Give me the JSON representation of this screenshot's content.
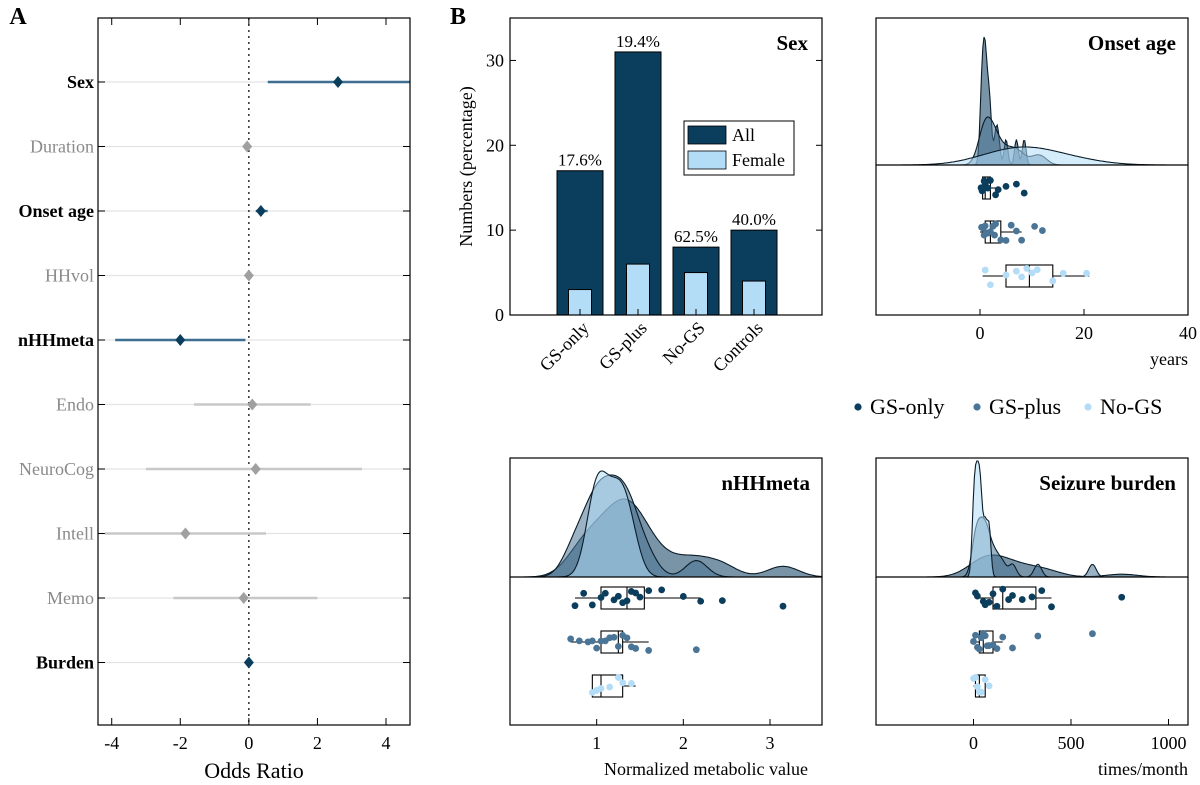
{
  "panel_labels": {
    "a": "A",
    "b": "B"
  },
  "colors": {
    "dark": "#0b3d5c",
    "mid": "#4a7596",
    "light": "#b3dcf7",
    "grey_marker": "#a0a0a0",
    "grey_line": "#c8c8c8",
    "grey_text": "#8a8a8a",
    "dark_line": "#3f6f90",
    "axis": "#000000"
  },
  "chart_data": [
    {
      "id": "forest",
      "type": "forest",
      "xlabel": "Odds Ratio",
      "xlim": [
        -4.4,
        4.7
      ],
      "xticks": [
        -4,
        -2,
        0,
        2,
        4
      ],
      "xtick_labels": [
        "-4",
        "-2",
        "0",
        "2",
        "4"
      ],
      "reference_line": 0,
      "rows": [
        {
          "label": "Sex",
          "estimate": 2.6,
          "ci": [
            0.55,
            4.7
          ],
          "significant": true
        },
        {
          "label": "Duration",
          "estimate": -0.05,
          "ci": [
            -0.05,
            -0.05
          ],
          "significant": false
        },
        {
          "label": "Onset age",
          "estimate": 0.35,
          "ci": [
            0.2,
            0.55
          ],
          "significant": true
        },
        {
          "label": "HHvol",
          "estimate": 0.0,
          "ci": [
            0.0,
            0.0
          ],
          "significant": false
        },
        {
          "label": "nHHmeta",
          "estimate": -2.0,
          "ci": [
            -3.9,
            -0.1
          ],
          "significant": true
        },
        {
          "label": "Endo",
          "estimate": 0.1,
          "ci": [
            -1.6,
            1.8
          ],
          "significant": false
        },
        {
          "label": "NeuroCog",
          "estimate": 0.2,
          "ci": [
            -3.0,
            3.3
          ],
          "significant": false
        },
        {
          "label": "Intell",
          "estimate": -1.85,
          "ci": [
            -4.2,
            0.5
          ],
          "significant": false
        },
        {
          "label": "Memo",
          "estimate": -0.15,
          "ci": [
            -2.2,
            2.0
          ],
          "significant": false
        },
        {
          "label": "Burden",
          "estimate": 0.0,
          "ci": [
            0.0,
            0.0
          ],
          "significant": true
        }
      ]
    },
    {
      "id": "sex",
      "type": "bar",
      "title": "Sex",
      "ylabel": "Numbers (percentage)",
      "categories": [
        "GS-only",
        "GS-plus",
        "No-GS",
        "Controls"
      ],
      "series": [
        {
          "name": "All",
          "values": [
            17,
            31,
            8,
            10
          ]
        },
        {
          "name": "Female",
          "values": [
            3,
            6,
            5,
            4
          ]
        }
      ],
      "bar_labels": [
        "17.6%",
        "19.4%",
        "62.5%",
        "40.0%"
      ],
      "ylim": [
        0,
        35
      ],
      "yticks": [
        0,
        10,
        20,
        30
      ],
      "ytick_labels": [
        "0",
        "10",
        "20",
        "30"
      ],
      "legend": [
        "All",
        "Female"
      ],
      "legend_position": "center-right"
    },
    {
      "id": "onset",
      "type": "raincloud",
      "title": "Onset age",
      "xlabel": "years",
      "xlim": [
        -20,
        40
      ],
      "xticks": [
        0,
        20,
        40
      ],
      "xtick_labels": [
        "0",
        "20",
        "40"
      ],
      "groups": [
        {
          "name": "GS-only",
          "points": [
            0.2,
            0.5,
            0.8,
            1,
            1.2,
            1.5,
            2,
            3,
            3.5,
            5,
            7,
            8.5,
            0.4,
            1.8,
            0.9
          ]
        },
        {
          "name": "GS-plus",
          "points": [
            0.3,
            0.8,
            1,
            1.5,
            2,
            2.5,
            3,
            4,
            5,
            6,
            7,
            8,
            10.5,
            12,
            1.2,
            2.8,
            0.6
          ]
        },
        {
          "name": "No-GS",
          "points": [
            1,
            2,
            5,
            7,
            8,
            10,
            11,
            14,
            16,
            20.5,
            9
          ]
        }
      ],
      "box": [
        {
          "name": "GS-only",
          "whisker_low": 0,
          "q1": 0.5,
          "median": 1.0,
          "q3": 2.0,
          "whisker_high": 3.5
        },
        {
          "name": "GS-plus",
          "whisker_low": 0,
          "q1": 1.0,
          "median": 2.0,
          "q3": 4.0,
          "whisker_high": 8.0
        },
        {
          "name": "No-GS",
          "whisker_low": 0.5,
          "q1": 5.0,
          "median": 9.5,
          "q3": 14.0,
          "whisker_high": 21.0
        }
      ]
    },
    {
      "id": "meta",
      "type": "raincloud",
      "title": "nHHmeta",
      "xlabel": "Normalized metabolic value",
      "xlim": [
        0,
        3.6
      ],
      "xticks": [
        1,
        2,
        3
      ],
      "xtick_labels": [
        "1",
        "2",
        "3"
      ],
      "groups": [
        {
          "name": "GS-only",
          "points": [
            0.75,
            0.85,
            0.95,
            1.05,
            1.1,
            1.2,
            1.25,
            1.3,
            1.35,
            1.4,
            1.45,
            1.5,
            1.6,
            1.75,
            2.0,
            2.2,
            2.45,
            3.15
          ]
        },
        {
          "name": "GS-plus",
          "points": [
            0.7,
            0.8,
            0.9,
            0.95,
            1.0,
            1.05,
            1.1,
            1.15,
            1.2,
            1.25,
            1.3,
            1.35,
            1.4,
            1.45,
            1.6,
            2.15
          ]
        },
        {
          "name": "No-GS",
          "points": [
            0.95,
            1.0,
            1.05,
            1.15,
            1.25,
            1.3,
            1.4
          ]
        }
      ],
      "box": [
        {
          "name": "GS-only",
          "whisker_low": 0.75,
          "q1": 1.05,
          "median": 1.35,
          "q3": 1.55,
          "whisker_high": 2.2
        },
        {
          "name": "GS-plus",
          "whisker_low": 0.7,
          "q1": 1.05,
          "median": 1.25,
          "q3": 1.3,
          "whisker_high": 1.6
        },
        {
          "name": "No-GS",
          "whisker_low": 0.95,
          "q1": 0.95,
          "median": 1.05,
          "q3": 1.3,
          "whisker_high": 1.45
        }
      ]
    },
    {
      "id": "burden",
      "type": "raincloud",
      "title": "Seizure burden",
      "xlabel": "times/month",
      "xlim": [
        -500,
        1100
      ],
      "xticks": [
        0,
        500,
        1000
      ],
      "xtick_labels": [
        "0",
        "500",
        "1000"
      ],
      "groups": [
        {
          "name": "GS-only",
          "points": [
            10,
            20,
            50,
            80,
            100,
            120,
            150,
            200,
            250,
            300,
            350,
            400,
            760,
            60,
            180
          ]
        },
        {
          "name": "GS-plus",
          "points": [
            0,
            10,
            20,
            30,
            40,
            50,
            60,
            70,
            80,
            100,
            120,
            150,
            200,
            330,
            610
          ]
        },
        {
          "name": "No-GS",
          "points": [
            0,
            10,
            20,
            30,
            40,
            60,
            80
          ]
        }
      ],
      "box": [
        {
          "name": "GS-only",
          "whisker_low": 10,
          "q1": 100,
          "median": 150,
          "q3": 320,
          "whisker_high": 400
        },
        {
          "name": "GS-plus",
          "whisker_low": 0,
          "q1": 30,
          "median": 50,
          "q3": 100,
          "whisker_high": 150
        },
        {
          "name": "No-GS",
          "whisker_low": 0,
          "q1": 10,
          "median": 30,
          "q3": 60,
          "whisker_high": 80
        }
      ]
    }
  ],
  "group_legend": [
    "GS-only",
    "GS-plus",
    "No-GS"
  ]
}
